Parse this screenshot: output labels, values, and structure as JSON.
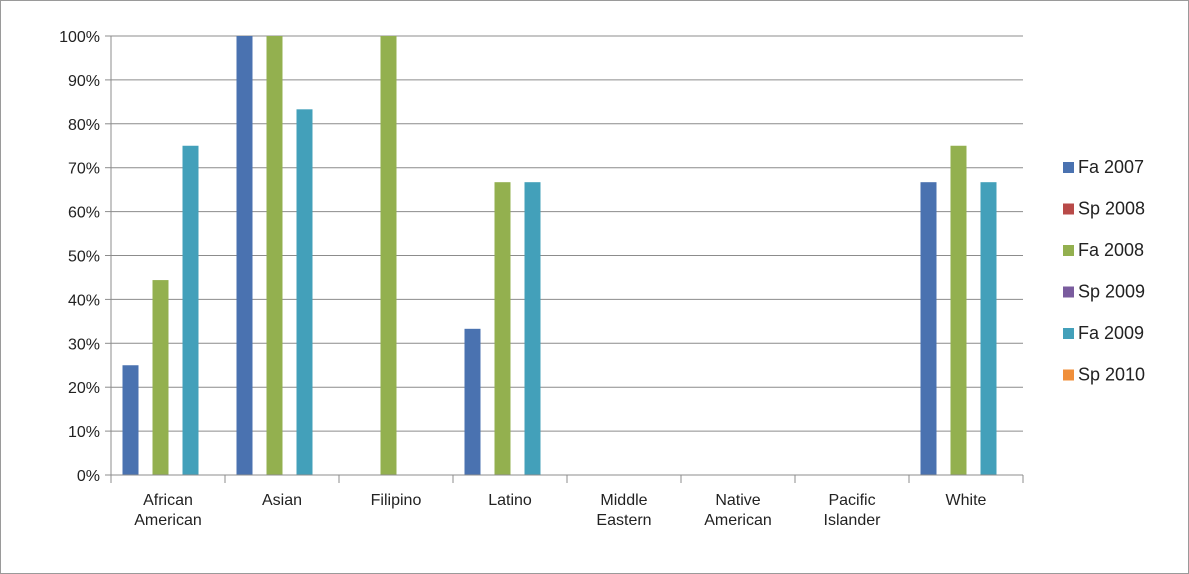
{
  "chart_data": {
    "type": "bar",
    "categories": [
      [
        "African",
        "American"
      ],
      [
        "Asian"
      ],
      [
        "Filipino"
      ],
      [
        "Latino"
      ],
      [
        "Middle",
        "Eastern"
      ],
      [
        "Native",
        "American"
      ],
      [
        "Pacific",
        "Islander"
      ],
      [
        "White"
      ]
    ],
    "series": [
      {
        "name": "Fa 2007",
        "color": "#4a72b0",
        "values": [
          25,
          100,
          0,
          33.3,
          0,
          0,
          0,
          66.7
        ]
      },
      {
        "name": "Sp 2008",
        "color": "#b84a48",
        "values": [
          0,
          0,
          0,
          0,
          0,
          0,
          0,
          0
        ]
      },
      {
        "name": "Fa 2008",
        "color": "#93b04f",
        "values": [
          44.4,
          100,
          100,
          66.7,
          0,
          0,
          0,
          75
        ]
      },
      {
        "name": "Sp 2009",
        "color": "#7a5c9e",
        "values": [
          0,
          0,
          0,
          0,
          0,
          0,
          0,
          0
        ]
      },
      {
        "name": "Fa 2009",
        "color": "#43a0ba",
        "values": [
          75,
          83.3,
          0,
          66.7,
          0,
          0,
          0,
          66.7
        ]
      },
      {
        "name": "Sp 2010",
        "color": "#f08f3a",
        "values": [
          0,
          0,
          0,
          0,
          0,
          0,
          0,
          0
        ]
      }
    ],
    "y_ticks": [
      "0%",
      "10%",
      "20%",
      "30%",
      "40%",
      "50%",
      "60%",
      "70%",
      "80%",
      "90%",
      "100%"
    ],
    "ylim": [
      0,
      100
    ],
    "grid": true,
    "legend_position": "right",
    "axis_color": "#8c8c8c",
    "grid_color": "#8c8c8c"
  }
}
